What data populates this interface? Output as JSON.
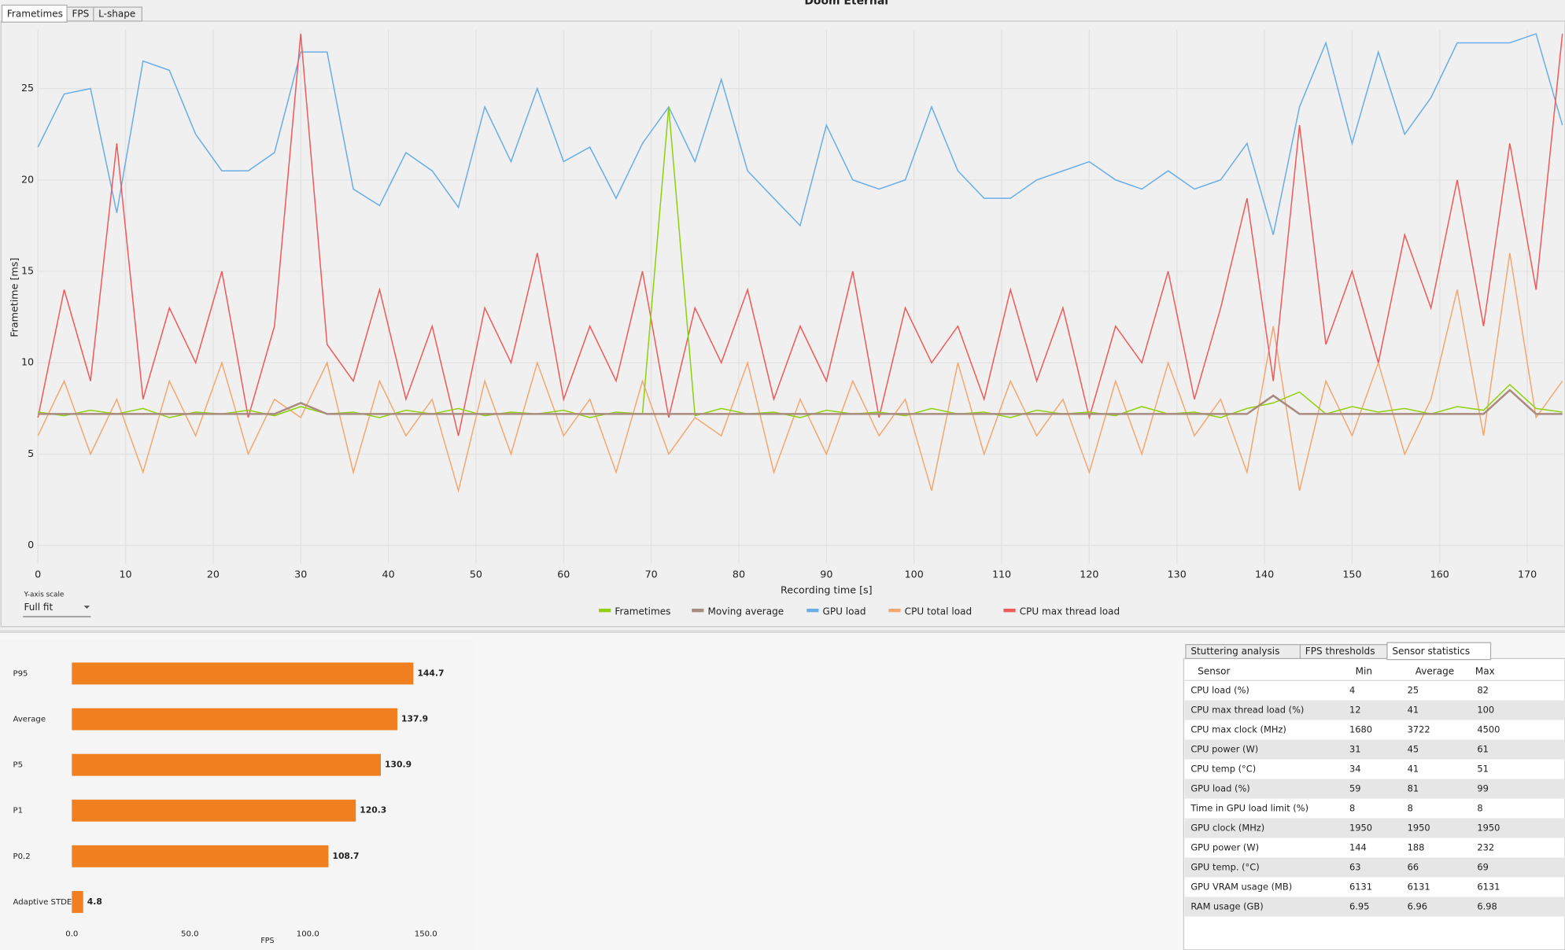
{
  "tabs": [
    "Frametimes",
    "FPS",
    "L-shape"
  ],
  "y_scale": {
    "label": "Y-axis scale",
    "value": "Full fit"
  },
  "chart_data": [
    {
      "type": "line",
      "title": "Doom Eternal",
      "xlabel": "Recording time [s]",
      "ylabel": "Frametime [ms]",
      "x": [
        0,
        3,
        6,
        9,
        12,
        15,
        18,
        21,
        24,
        27,
        30,
        33,
        36,
        39,
        42,
        45,
        48,
        51,
        54,
        57,
        60,
        63,
        66,
        69,
        72,
        75,
        78,
        81,
        84,
        87,
        90,
        93,
        96,
        99,
        102,
        105,
        108,
        111,
        114,
        117,
        120,
        123,
        126,
        129,
        132,
        135,
        138,
        141,
        144,
        147,
        150,
        153,
        156,
        159,
        162,
        165,
        168,
        171,
        174
      ],
      "series": [
        {
          "name": "Frametimes",
          "color": "#8fd10f",
          "values": [
            7.3,
            7.1,
            7.4,
            7.2,
            7.5,
            7.0,
            7.3,
            7.2,
            7.4,
            7.1,
            7.6,
            7.2,
            7.3,
            7.0,
            7.4,
            7.2,
            7.5,
            7.1,
            7.3,
            7.2,
            7.4,
            7.0,
            7.3,
            7.2,
            24.0,
            7.1,
            7.5,
            7.2,
            7.3,
            7.0,
            7.4,
            7.2,
            7.3,
            7.1,
            7.5,
            7.2,
            7.3,
            7.0,
            7.4,
            7.2,
            7.3,
            7.1,
            7.6,
            7.2,
            7.3,
            7.0,
            7.5,
            7.8,
            8.4,
            7.2,
            7.6,
            7.3,
            7.5,
            7.2,
            7.6,
            7.4,
            8.8,
            7.5,
            7.3
          ]
        },
        {
          "name": "Moving average",
          "color": "#a98b7f",
          "values": [
            7.2,
            7.2,
            7.2,
            7.2,
            7.2,
            7.2,
            7.2,
            7.2,
            7.2,
            7.2,
            7.8,
            7.2,
            7.2,
            7.2,
            7.2,
            7.2,
            7.2,
            7.2,
            7.2,
            7.2,
            7.2,
            7.2,
            7.2,
            7.2,
            7.2,
            7.2,
            7.2,
            7.2,
            7.2,
            7.2,
            7.2,
            7.2,
            7.2,
            7.2,
            7.2,
            7.2,
            7.2,
            7.2,
            7.2,
            7.2,
            7.2,
            7.2,
            7.2,
            7.2,
            7.2,
            7.2,
            7.2,
            8.2,
            7.2,
            7.2,
            7.2,
            7.2,
            7.2,
            7.2,
            7.2,
            7.2,
            8.5,
            7.2,
            7.2
          ]
        },
        {
          "name": "GPU load",
          "color": "#6aaee8",
          "values": [
            21.8,
            24.7,
            25.0,
            18.2,
            26.5,
            26.0,
            22.5,
            20.5,
            20.5,
            21.5,
            27.0,
            27.0,
            19.5,
            18.6,
            21.5,
            20.5,
            18.5,
            24.0,
            21.0,
            25.0,
            21.0,
            21.8,
            19.0,
            22.0,
            24.0,
            21.0,
            25.5,
            20.5,
            19.0,
            17.5,
            23.0,
            20.0,
            19.5,
            20.0,
            24.0,
            20.5,
            19.0,
            19.0,
            20.0,
            20.5,
            21.0,
            20.0,
            19.5,
            20.5,
            19.5,
            20.0,
            22.0,
            17.0,
            24.0,
            27.5,
            22.0,
            27.0,
            22.5,
            24.5,
            27.5,
            27.5,
            27.5,
            28.0,
            23.0
          ]
        },
        {
          "name": "CPU total load",
          "color": "#f3a870",
          "values": [
            6,
            9,
            5,
            8,
            4,
            9,
            6,
            10,
            5,
            8,
            7,
            10,
            4,
            9,
            6,
            8,
            3,
            9,
            5,
            10,
            6,
            8,
            4,
            9,
            5,
            7,
            6,
            10,
            4,
            8,
            5,
            9,
            6,
            8,
            3,
            10,
            5,
            9,
            6,
            8,
            4,
            9,
            5,
            10,
            6,
            8,
            4,
            12,
            3,
            9,
            6,
            10,
            5,
            8,
            14,
            6,
            16,
            7,
            9
          ]
        },
        {
          "name": "CPU max thread load",
          "color": "#ee5b5b",
          "values": [
            7,
            14,
            9,
            22,
            8,
            13,
            10,
            15,
            7,
            12,
            28,
            11,
            9,
            14,
            8,
            12,
            6,
            13,
            10,
            16,
            8,
            12,
            9,
            15,
            7,
            13,
            10,
            14,
            8,
            12,
            9,
            15,
            7,
            13,
            10,
            12,
            8,
            14,
            9,
            13,
            7,
            12,
            10,
            15,
            8,
            13,
            19,
            9,
            23,
            11,
            15,
            10,
            17,
            13,
            20,
            12,
            22,
            14,
            28
          ]
        }
      ],
      "xlim": [
        0,
        174.3
      ],
      "ylim": [
        -1,
        28.2
      ],
      "xticks": [
        0,
        10,
        20,
        30,
        40,
        50,
        60,
        70,
        80,
        90,
        100,
        110,
        120,
        130,
        140,
        150,
        160,
        170
      ],
      "yticks": [
        0,
        5,
        10,
        15,
        20,
        25
      ],
      "grid": true,
      "legend": "bottom"
    },
    {
      "type": "barh",
      "xlabel": "FPS",
      "categories": [
        "P95",
        "Average",
        "P5",
        "P1",
        "P0.2",
        "Adaptive STDEV"
      ],
      "values": [
        144.7,
        137.9,
        130.9,
        120.3,
        108.7,
        4.8
      ],
      "color": "#f07f1f",
      "xlim": [
        0,
        170
      ],
      "xticks": [
        {
          "value": 0,
          "label": "0.0"
        },
        {
          "value": 50,
          "label": "50.0"
        },
        {
          "value": 100,
          "label": "100.0"
        },
        {
          "value": 150,
          "label": "150.0"
        }
      ]
    }
  ],
  "sensor_table": {
    "tabs": [
      "Stuttering analysis",
      "FPS thresholds",
      "Sensor statistics"
    ],
    "header": [
      "Sensor",
      "Min",
      "Average",
      "Max"
    ],
    "rows": [
      [
        "CPU load (%)",
        4,
        25,
        82
      ],
      [
        "CPU max thread load (%)",
        12,
        41,
        100
      ],
      [
        "CPU max clock (MHz)",
        1680,
        3722,
        4500
      ],
      [
        "CPU power (W)",
        31,
        45,
        61
      ],
      [
        "CPU temp (°C)",
        34,
        41,
        51
      ],
      [
        "GPU load (%)",
        59,
        81,
        99
      ],
      [
        "Time in GPU load limit (%)",
        8,
        8,
        8
      ],
      [
        "GPU clock (MHz)",
        1950,
        1950,
        1950
      ],
      [
        "GPU power (W)",
        144,
        188,
        232
      ],
      [
        "GPU temp. (°C)",
        63,
        66,
        69
      ],
      [
        "GPU VRAM usage (MB)",
        6131,
        6131,
        6131
      ],
      [
        "RAM usage (GB)",
        6.95,
        6.96,
        6.98
      ]
    ]
  }
}
